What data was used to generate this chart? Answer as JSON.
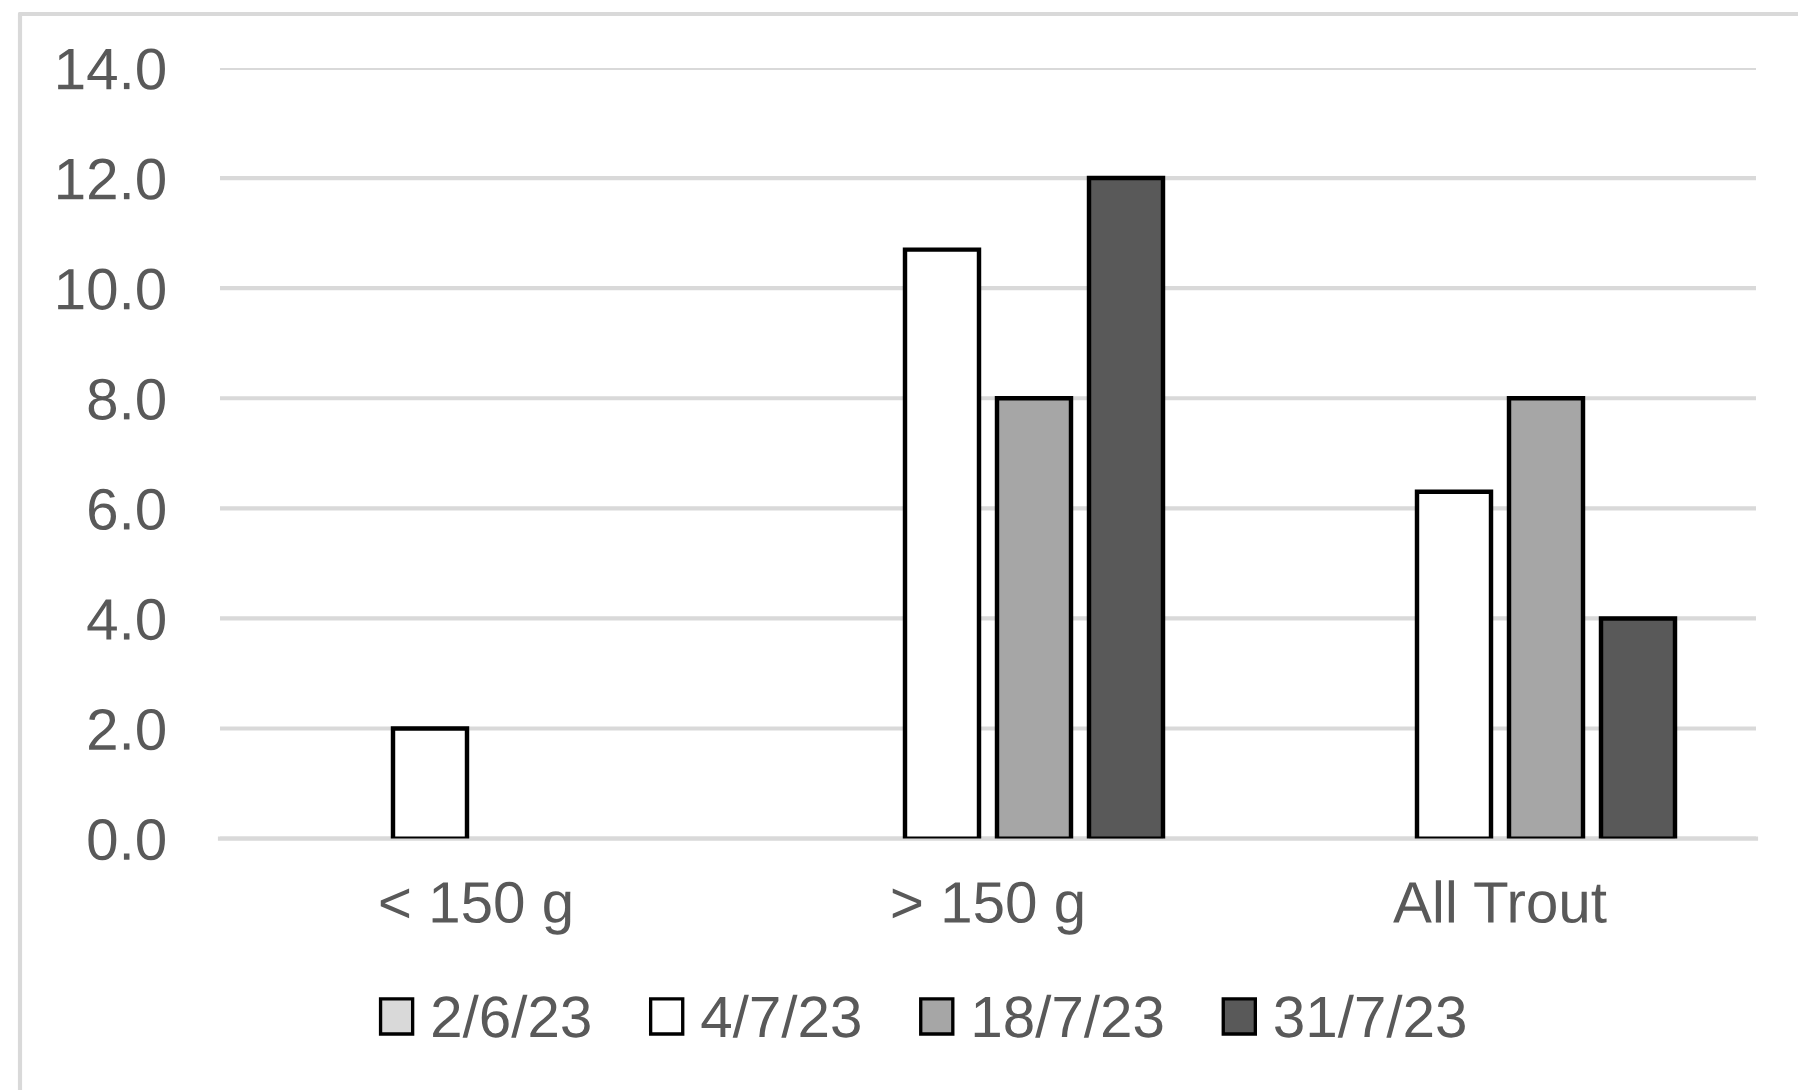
{
  "chart_data": {
    "type": "bar",
    "categories": [
      "< 150 g",
      "> 150 g",
      "All Trout"
    ],
    "series": [
      {
        "name": "2/6/23",
        "color": "#d9d9d9",
        "values": [
          null,
          null,
          null
        ]
      },
      {
        "name": "4/7/23",
        "color": "#ffffff",
        "values": [
          2.0,
          10.7,
          6.3
        ]
      },
      {
        "name": "18/7/23",
        "color": "#a6a6a6",
        "values": [
          null,
          8.0,
          8.0
        ]
      },
      {
        "name": "31/7/23",
        "color": "#595959",
        "values": [
          null,
          12.0,
          4.0
        ]
      }
    ],
    "ylim": [
      0,
      14
    ],
    "yticks": [
      {
        "value": 0,
        "label": "0.0"
      },
      {
        "value": 2,
        "label": "2.0"
      },
      {
        "value": 4,
        "label": "4.0"
      },
      {
        "value": 6,
        "label": "6.0"
      },
      {
        "value": 8,
        "label": "8.0"
      },
      {
        "value": 10,
        "label": "10.0"
      },
      {
        "value": 12,
        "label": "12.0"
      },
      {
        "value": 14,
        "label": "14.0"
      }
    ],
    "grid": "y",
    "legend": "bottom"
  }
}
